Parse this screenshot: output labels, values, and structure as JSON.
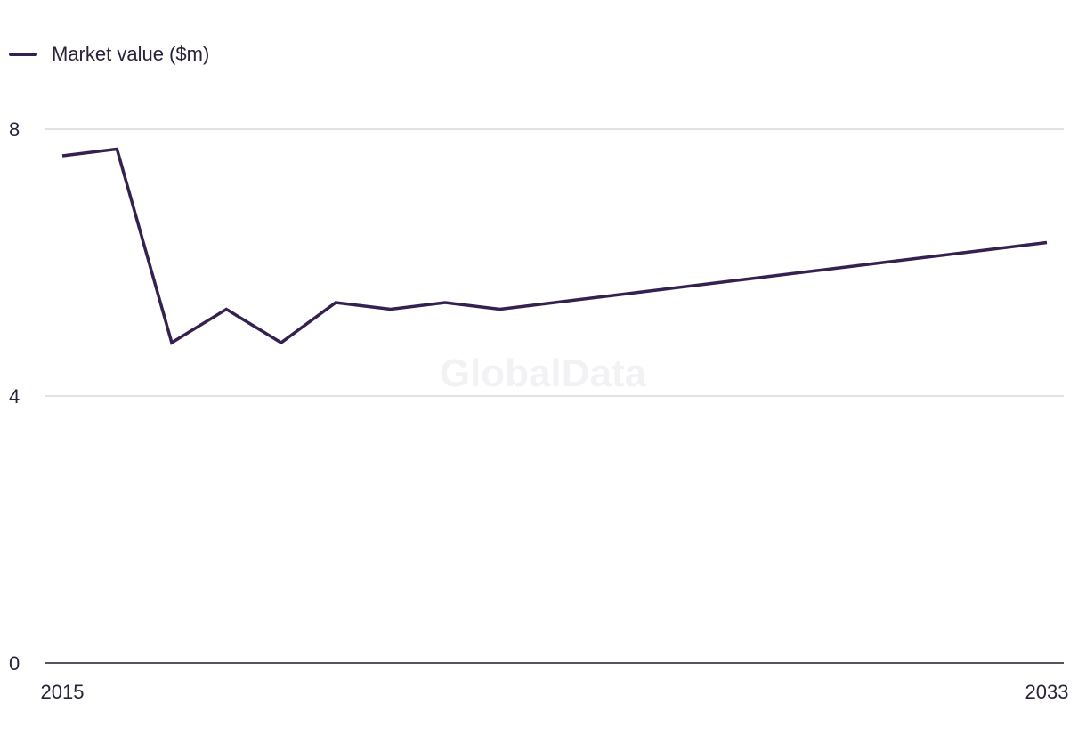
{
  "legend": {
    "label": "Market value ($m)"
  },
  "watermark": "GlobalData",
  "colors": {
    "line": "#35214f",
    "grid": "#d9d9de",
    "axis": "#1f1a2e"
  },
  "chart_data": {
    "type": "line",
    "title": "",
    "xlabel": "",
    "ylabel": "",
    "x": [
      2015,
      2016,
      2017,
      2018,
      2019,
      2020,
      2021,
      2022,
      2023,
      2024,
      2025,
      2026,
      2027,
      2028,
      2029,
      2030,
      2031,
      2032,
      2033
    ],
    "series": [
      {
        "name": "Market value ($m)",
        "values": [
          7.6,
          7.7,
          4.8,
          5.3,
          4.8,
          5.4,
          5.3,
          5.4,
          5.3,
          5.4,
          5.5,
          5.6,
          5.7,
          5.8,
          5.9,
          6.0,
          6.1,
          6.2,
          6.3
        ]
      }
    ],
    "ylim": [
      0,
      8
    ],
    "y_ticks": [
      "0",
      "4",
      "8"
    ],
    "x_tick_labels": [
      "2015",
      "2033"
    ],
    "grid": true,
    "legend_position": "top-left"
  }
}
